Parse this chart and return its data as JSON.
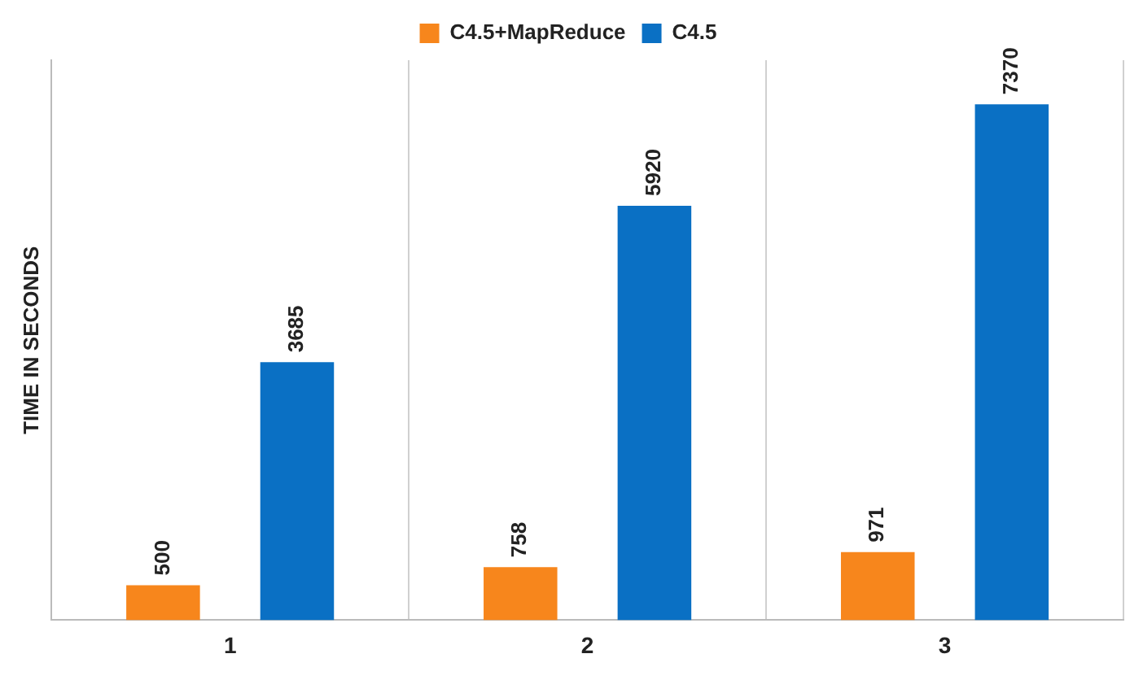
{
  "chart_data": {
    "type": "bar",
    "ylabel": "TIME IN SECONDS",
    "categories": [
      "1",
      "2",
      "3"
    ],
    "series": [
      {
        "name": "C4.5+MapReduce",
        "color": "#f7861c",
        "values": [
          500,
          758,
          971
        ]
      },
      {
        "name": "C4.5",
        "color": "#0a70c4",
        "values": [
          3685,
          5920,
          7370
        ]
      }
    ],
    "ylim": [
      0,
      8000
    ],
    "data_labels": true,
    "grid": "x",
    "legend": "top",
    "tick_labels": "x"
  }
}
